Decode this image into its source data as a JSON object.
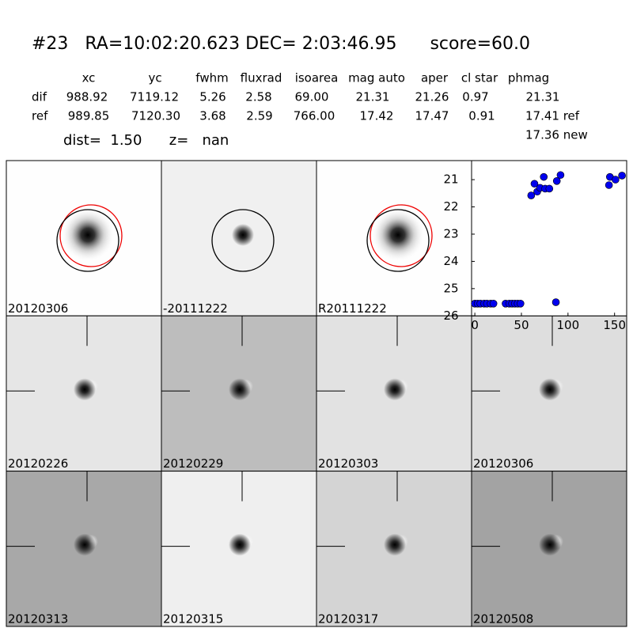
{
  "header": {
    "title": "#23   RA=10:02:20.623 DEC= 2:03:46.95      score=60.0",
    "columns": [
      "xc",
      "yc",
      "fwhm",
      "fluxrad",
      "isoarea",
      "mag auto",
      "aper",
      "cl star",
      "phmag"
    ],
    "rows": [
      {
        "label": "dif",
        "cells": [
          "988.92",
          "7119.12",
          "5.26",
          "2.58",
          "69.00",
          "21.31",
          "21.26",
          "0.97",
          "21.31"
        ]
      },
      {
        "label": "ref",
        "cells": [
          "989.85",
          "7120.30",
          "3.68",
          "2.59",
          "766.00",
          "17.42",
          "17.47",
          "0.91",
          "17.41 ref"
        ]
      }
    ],
    "new_mag": "17.36 new",
    "dist_line": "dist=  1.50      z=   nan"
  },
  "stamps": [
    {
      "label": "20120306"
    },
    {
      "label": "-20111222"
    },
    {
      "label": "R20111222"
    },
    {
      "label": "20120226"
    },
    {
      "label": "20120229"
    },
    {
      "label": "20120303"
    },
    {
      "label": "20120306",
      "color": "#ff0000"
    },
    {
      "label": "20120313"
    },
    {
      "label": "20120315"
    },
    {
      "label": "20120317"
    },
    {
      "label": "20120508"
    }
  ],
  "chart_data": {
    "type": "scatter",
    "color": "#0000ee",
    "x": [
      0,
      3,
      6,
      10,
      13,
      17,
      20,
      33,
      37,
      40,
      43,
      46,
      49,
      87,
      60.5,
      64,
      67,
      70,
      74,
      75.5,
      80,
      88,
      92,
      144,
      145,
      151,
      158
    ],
    "values": [
      25.55,
      25.55,
      25.55,
      25.55,
      25.55,
      25.55,
      25.55,
      25.55,
      25.55,
      25.55,
      25.55,
      25.55,
      25.55,
      25.5,
      21.58,
      21.15,
      21.44,
      21.3,
      20.9,
      21.33,
      21.33,
      21.05,
      20.83,
      21.2,
      20.9,
      21.0,
      20.85
    ],
    "xlim": [
      -3.5,
      163
    ],
    "ylim": [
      26,
      20.3
    ],
    "xticks": [
      0,
      50,
      100,
      150
    ],
    "yticks": [
      21,
      22,
      23,
      24,
      25,
      26
    ]
  }
}
